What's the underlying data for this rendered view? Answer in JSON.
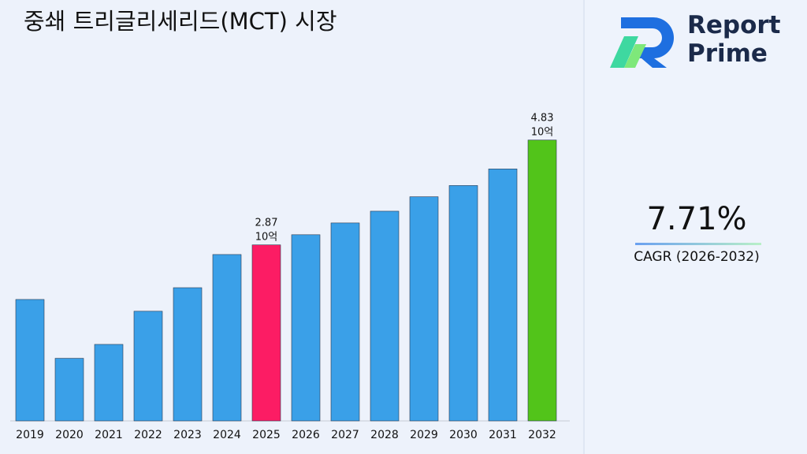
{
  "chart_data": {
    "type": "bar",
    "title": "중쇄 트리글리세리드(MCT) 시장",
    "categories": [
      "2019",
      "2020",
      "2021",
      "2022",
      "2023",
      "2024",
      "2025",
      "2026",
      "2027",
      "2028",
      "2029",
      "2030",
      "2031",
      "2032"
    ],
    "values": [
      1.85,
      0.75,
      1.01,
      1.63,
      2.07,
      2.69,
      2.87,
      3.06,
      3.28,
      3.5,
      3.77,
      3.98,
      4.29,
      4.83
    ],
    "colors": [
      "#3aa0e8",
      "#3aa0e8",
      "#3aa0e8",
      "#3aa0e8",
      "#3aa0e8",
      "#3aa0e8",
      "#fc1c64",
      "#3aa0e8",
      "#3aa0e8",
      "#3aa0e8",
      "#3aa0e8",
      "#3aa0e8",
      "#3aa0e8",
      "#52c41a"
    ],
    "labeled": [
      6,
      13
    ],
    "unit_label": "10억",
    "ylim": [
      -0.42,
      5.4
    ]
  },
  "cagr": {
    "value": "7.71%",
    "label": "CAGR (2026-2032)"
  },
  "logo": [
    "Report",
    "Prime"
  ]
}
